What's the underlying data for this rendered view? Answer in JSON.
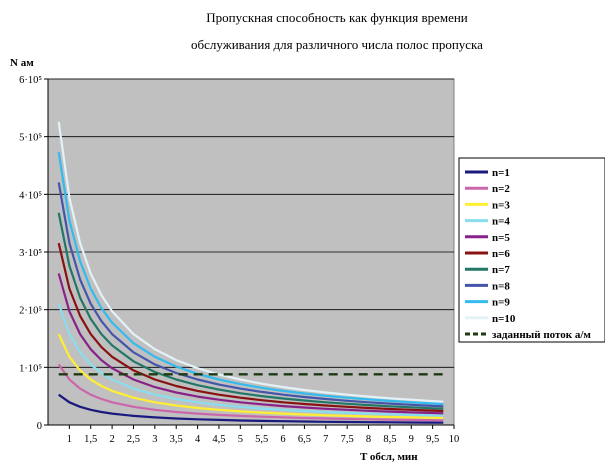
{
  "chart_data": {
    "type": "line",
    "title_lines": [
      "Пропускная способность как функция времени",
      "обслуживания для различного числа полос пропуска"
    ],
    "ylabel": "N ам",
    "xlabel": "T обсл, мин",
    "xlim": [
      0.5,
      10
    ],
    "ylim": [
      0,
      600000
    ],
    "x_ticks": [
      1,
      1.5,
      2,
      2.5,
      3,
      3.5,
      4,
      4.5,
      5,
      5.5,
      6,
      6.5,
      7,
      7.5,
      8,
      8.5,
      9,
      9.5,
      10
    ],
    "x_tick_labels": [
      "1",
      "1,5",
      "2",
      "2,5",
      "3",
      "3,5",
      "4",
      "4,5",
      "5",
      "5,5",
      "6",
      "6,5",
      "7",
      "7,5",
      "8",
      "8,5",
      "9",
      "9,5",
      "10"
    ],
    "y_ticks": [
      0,
      100000,
      200000,
      300000,
      400000,
      500000,
      600000
    ],
    "y_tick_labels": [
      "0",
      "1·10⁵",
      "2·10⁵",
      "3·10⁵",
      "4·10⁵",
      "5·10⁵",
      "6·10⁵"
    ],
    "grid": "horizontal",
    "plot_background": "#c0c0c0",
    "legend_position": "right",
    "x": [
      0.75,
      1,
      1.25,
      1.5,
      1.75,
      2,
      2.5,
      3,
      3.5,
      4,
      4.5,
      5,
      5.5,
      6,
      6.5,
      7,
      7.5,
      8,
      8.5,
      9,
      9.5,
      9.75
    ],
    "series": [
      {
        "name": "n=1",
        "color": "#1a1a7e",
        "dashed": false,
        "values": [
          52560,
          39420,
          31536,
          26280,
          22526,
          19710,
          15768,
          13140,
          11263,
          9855,
          8760,
          7884,
          7167,
          6570,
          6065,
          5631,
          5256,
          4928,
          4638,
          4380,
          4149,
          4043
        ]
      },
      {
        "name": "n=2",
        "color": "#cc66aa",
        "dashed": false,
        "values": [
          105120,
          78840,
          63072,
          52560,
          45051,
          39420,
          31536,
          26280,
          22526,
          19710,
          17520,
          15768,
          14335,
          13140,
          12129,
          11263,
          10512,
          9855,
          9275,
          8760,
          8299,
          8086
        ]
      },
      {
        "name": "n=3",
        "color": "#ffee33",
        "dashed": false,
        "values": [
          157680,
          118260,
          94608,
          78840,
          67577,
          59130,
          47304,
          39420,
          33789,
          29565,
          26280,
          23652,
          21502,
          19710,
          18194,
          16894,
          15768,
          14783,
          13913,
          13140,
          12448,
          12129
        ]
      },
      {
        "name": "n=4",
        "color": "#88ddee",
        "dashed": false,
        "values": [
          210240,
          157680,
          126144,
          105120,
          90103,
          78840,
          63072,
          52560,
          45051,
          39420,
          35040,
          31536,
          28669,
          26280,
          24258,
          22526,
          21024,
          19710,
          18551,
          17520,
          16598,
          16172
        ]
      },
      {
        "name": "n=5",
        "color": "#882288",
        "dashed": false,
        "values": [
          262800,
          197100,
          157680,
          131400,
          112629,
          98550,
          78840,
          65700,
          56314,
          49275,
          43800,
          39420,
          35836,
          32850,
          30323,
          28157,
          26280,
          24638,
          23188,
          21900,
          20747,
          20215
        ]
      },
      {
        "name": "n=6",
        "color": "#881111",
        "dashed": false,
        "values": [
          315360,
          236520,
          189216,
          157680,
          135154,
          118260,
          94608,
          78840,
          67577,
          59130,
          52560,
          47304,
          43004,
          39420,
          36388,
          33789,
          31536,
          29565,
          27826,
          26280,
          24897,
          24258
        ]
      },
      {
        "name": "n=7",
        "color": "#227766",
        "dashed": false,
        "values": [
          367920,
          275940,
          220752,
          183960,
          157680,
          137970,
          110376,
          91980,
          78840,
          68985,
          61320,
          55188,
          50171,
          45990,
          42452,
          39420,
          36792,
          34493,
          32464,
          30660,
          29046,
          28302
        ]
      },
      {
        "name": "n=8",
        "color": "#4455aa",
        "dashed": false,
        "values": [
          420480,
          315360,
          252288,
          210240,
          180206,
          157680,
          126144,
          105120,
          90103,
          78840,
          70080,
          63072,
          57338,
          52560,
          48517,
          45051,
          42048,
          39420,
          37101,
          35040,
          33196,
          32345
        ]
      },
      {
        "name": "n=9",
        "color": "#33bbee",
        "dashed": false,
        "values": [
          473040,
          354780,
          283824,
          236520,
          202731,
          177390,
          141912,
          118260,
          101366,
          88695,
          78840,
          70956,
          64505,
          59130,
          54582,
          50683,
          47304,
          44348,
          41739,
          39420,
          37345,
          36388
        ]
      },
      {
        "name": "n=10",
        "color": "#e4f2f8",
        "dashed": false,
        "values": [
          525600,
          394200,
          315360,
          262800,
          225257,
          197100,
          157680,
          131400,
          112629,
          98550,
          87600,
          78840,
          71673,
          65700,
          60646,
          56314,
          52560,
          49275,
          46376,
          43800,
          41495,
          40431
        ]
      },
      {
        "name": "заданный поток а/м",
        "color": "#1f3a12",
        "dashed": true,
        "values": [
          88000,
          88000,
          88000,
          88000,
          88000,
          88000,
          88000,
          88000,
          88000,
          88000,
          88000,
          88000,
          88000,
          88000,
          88000,
          88000,
          88000,
          88000,
          88000,
          88000,
          88000,
          88000
        ]
      }
    ]
  }
}
